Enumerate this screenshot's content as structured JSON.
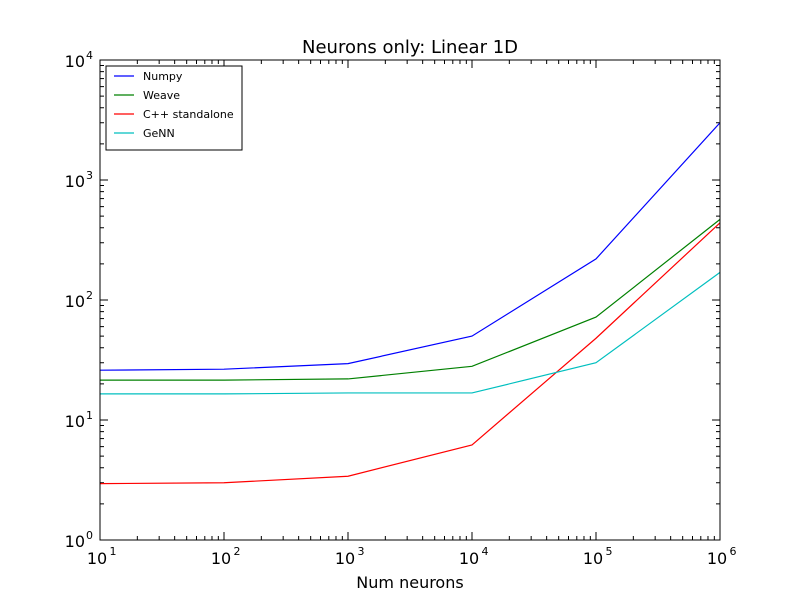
{
  "chart_data": {
    "type": "line",
    "title": "Neurons only: Linear 1D",
    "xlabel": "Num neurons",
    "ylabel": "",
    "xscale": "log",
    "yscale": "log",
    "xlim": [
      10,
      1000000
    ],
    "ylim": [
      1,
      10000
    ],
    "x_ticks": [
      {
        "value": 10,
        "base": "10",
        "exp": "1"
      },
      {
        "value": 100,
        "base": "10",
        "exp": "2"
      },
      {
        "value": 1000,
        "base": "10",
        "exp": "3"
      },
      {
        "value": 10000,
        "base": "10",
        "exp": "4"
      },
      {
        "value": 100000,
        "base": "10",
        "exp": "5"
      },
      {
        "value": 1000000,
        "base": "10",
        "exp": "6"
      }
    ],
    "y_ticks": [
      {
        "value": 1,
        "base": "10",
        "exp": "0"
      },
      {
        "value": 10,
        "base": "10",
        "exp": "1"
      },
      {
        "value": 100,
        "base": "10",
        "exp": "2"
      },
      {
        "value": 1000,
        "base": "10",
        "exp": "3"
      },
      {
        "value": 10000,
        "base": "10",
        "exp": "4"
      }
    ],
    "x": [
      10,
      100,
      1000,
      10000,
      100000,
      1000000
    ],
    "series": [
      {
        "name": "Numpy",
        "color": "#0000ff",
        "values": [
          26,
          26.5,
          29.5,
          50,
          220,
          3000
        ]
      },
      {
        "name": "Weave",
        "color": "#008000",
        "values": [
          21.5,
          21.5,
          22,
          28,
          72,
          470
        ]
      },
      {
        "name": "C++ standalone",
        "color": "#ff0000",
        "values": [
          2.95,
          3.0,
          3.4,
          6.2,
          48,
          440
        ]
      },
      {
        "name": "GeNN",
        "color": "#00bfbf",
        "values": [
          16.5,
          16.5,
          16.8,
          16.8,
          30,
          170
        ]
      }
    ],
    "legend": {
      "position": "top-left"
    },
    "grid": false
  }
}
